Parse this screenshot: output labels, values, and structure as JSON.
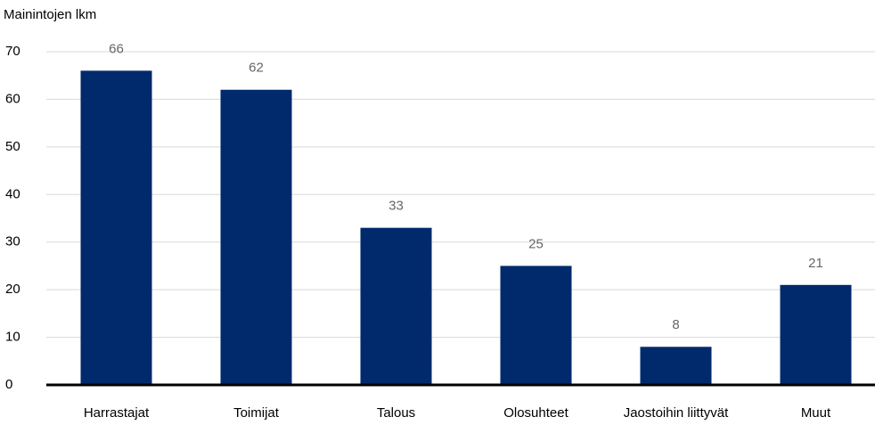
{
  "chart_data": {
    "type": "bar",
    "y_label": "Mainintojen lkm",
    "categories": [
      "Harrastajat",
      "Toimijat",
      "Talous",
      "Olosuhteet",
      "Jaostoihin liittyvät",
      "Muut"
    ],
    "values": [
      66,
      62,
      33,
      25,
      8,
      21
    ],
    "color": "#002a6c",
    "ylim": [
      0,
      70
    ],
    "yticks": [
      0,
      10,
      20,
      30,
      40,
      50,
      60,
      70
    ],
    "grid": true
  }
}
